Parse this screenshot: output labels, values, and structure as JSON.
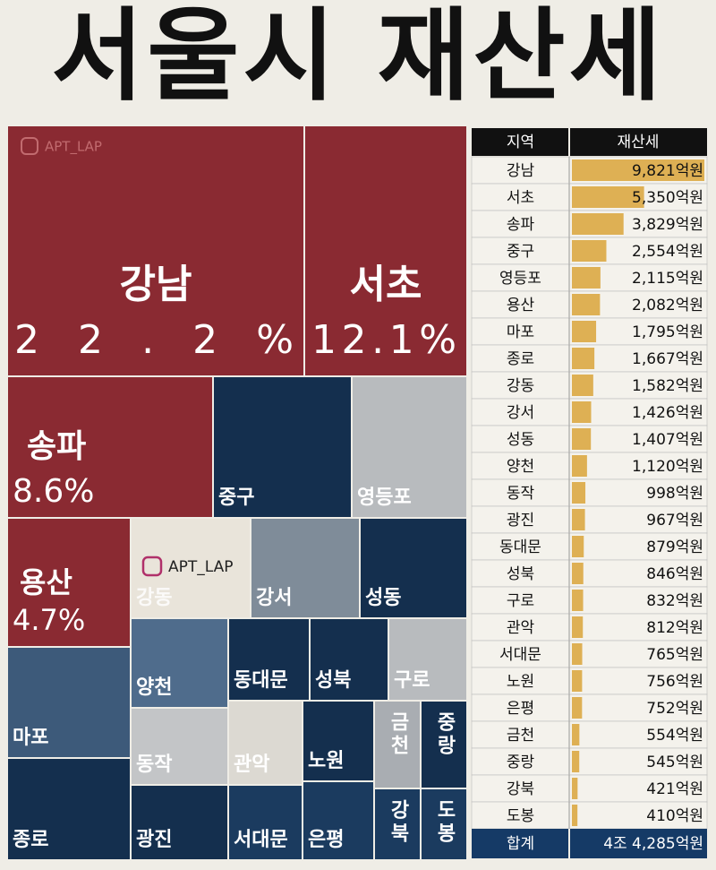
{
  "title": "서울시 재산세",
  "watermark": "APT_LAP",
  "chart_data": {
    "type": "treemap",
    "headers": [
      "지역",
      "재산세"
    ],
    "categories": [
      "강남",
      "서초",
      "송파",
      "중구",
      "영등포",
      "용산",
      "마포",
      "종로",
      "강동",
      "강서",
      "성동",
      "양천",
      "동작",
      "광진",
      "동대문",
      "성북",
      "구로",
      "관악",
      "서대문",
      "노원",
      "은평",
      "금천",
      "중랑",
      "강북",
      "도봉"
    ],
    "values": [
      9821,
      5350,
      3829,
      2554,
      2115,
      2082,
      1795,
      1667,
      1582,
      1426,
      1407,
      1120,
      998,
      967,
      879,
      846,
      832,
      812,
      765,
      756,
      752,
      554,
      545,
      421,
      410
    ],
    "value_labels": [
      "9,821억원",
      "5,350억원",
      "3,829억원",
      "2,554억원",
      "2,115억원",
      "2,082억원",
      "1,795억원",
      "1,667억원",
      "1,582억원",
      "1,426억원",
      "1,407억원",
      "1,120억원",
      "998억원",
      "967억원",
      "879억원",
      "846억원",
      "832억원",
      "812억원",
      "765억원",
      "756억원",
      "752억원",
      "554억원",
      "545억원",
      "421억원",
      "410억원"
    ],
    "share_labels": [
      "22.2%",
      "12.1%",
      "8.6%",
      null,
      null,
      "4.7%",
      null,
      null,
      null,
      null,
      null,
      null,
      null,
      null,
      null,
      null,
      null,
      null,
      null,
      null,
      null,
      null,
      null,
      null,
      null
    ],
    "colors": [
      "#8a2a32",
      "#8a2a32",
      "#8a2a32",
      "#142f4e",
      "#b8bbbe",
      "#8a2a32",
      "#3d5a7a",
      "#142f4e",
      "#e9e4da",
      "#7f8c99",
      "#142f4e",
      "#4f6c8c",
      "#c3c5c7",
      "#142f4e",
      "#142f4e",
      "#142f4e",
      "#b8bbbe",
      "#dcd9d2",
      "#1b3b5f",
      "#142f4e",
      "#1b3b5f",
      "#a9adb2",
      "#142f4e",
      "#1b3b5f",
      "#1b3b5f"
    ],
    "bar_color": "#d9a53a",
    "total": {
      "label": "합계",
      "value": 44285,
      "value_label": "4조 4,285억원"
    }
  }
}
